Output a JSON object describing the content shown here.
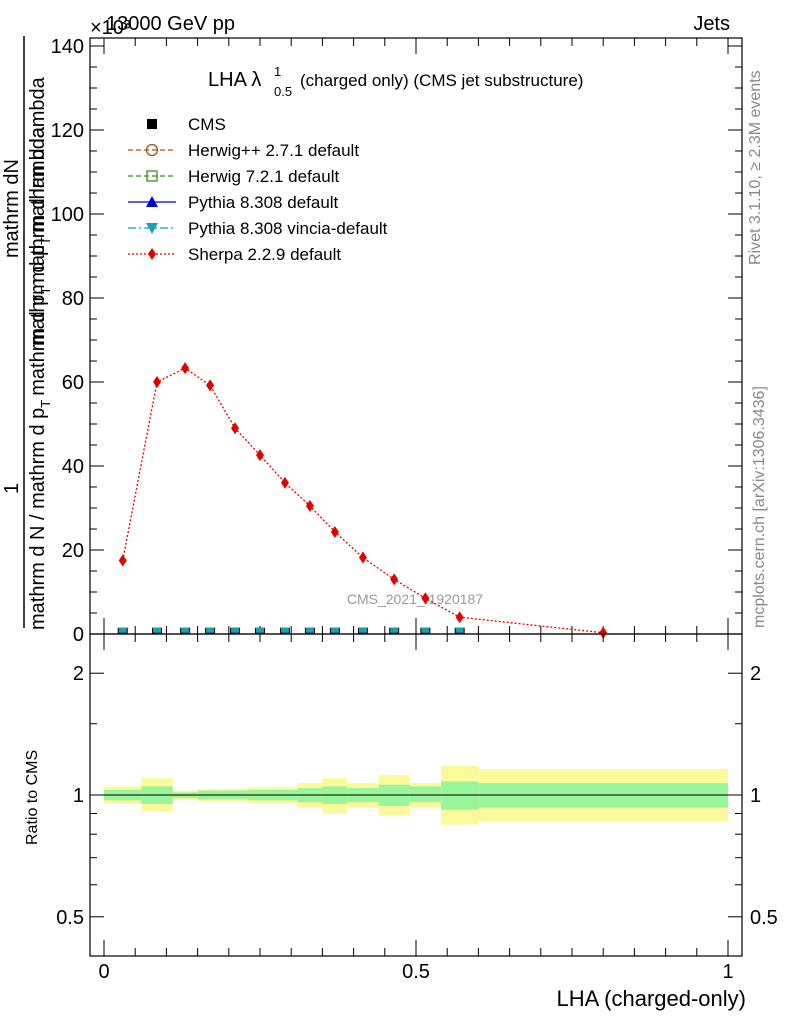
{
  "header": {
    "left": "13000 GeV pp",
    "right": "Jets",
    "exponent": "×10³"
  },
  "side_labels": {
    "rivet": "Rivet 3.1.10, ≥ 2.3M events",
    "mcplots": "mcplots.cern.ch [arXiv:1306.3436]"
  },
  "watermark": "CMS_2021_I1920187",
  "chart_data": [
    {
      "type": "line",
      "title": "LHA λ",
      "title_sup": "1",
      "title_sub": "0.5",
      "title_suffix": "(charged only) (CMS jet substructure)",
      "ylabel_top": "mathrm dN",
      "ylabel_mid": "mathrm d p",
      "ylabel_sub": "T",
      "ylabel_end": "mathrm d lambda",
      "ylabel_one": "1",
      "ylabel_den_a": "mathrm d N / mathrm d p",
      "ylabel_den_sub": "T",
      "ylabel_den_b": "mathrm d p",
      "ylabel_den_sub2": "T",
      "ylabel_den_c": "mathrm d lambda",
      "xlim": [
        0,
        1
      ],
      "ylim": [
        0,
        140
      ],
      "y_ticks": [
        "0",
        "20",
        "40",
        "60",
        "80",
        "100",
        "120",
        "140"
      ],
      "legend": [
        {
          "name": "CMS",
          "color": "#000000",
          "marker": "square-filled",
          "dash": "none"
        },
        {
          "name": "Herwig++ 2.7.1 default",
          "color": "#a0521a",
          "marker": "circle-open",
          "dash": "dashed"
        },
        {
          "name": "Herwig 7.2.1 default",
          "color": "#3c8c1e",
          "marker": "square-open",
          "dash": "dashed"
        },
        {
          "name": "Pythia 8.308 default",
          "color": "#0000cc",
          "marker": "triangle-up",
          "dash": "solid"
        },
        {
          "name": "Pythia 8.308 vincia-default",
          "color": "#1aa0b4",
          "marker": "triangle-down",
          "dash": "dashdot"
        },
        {
          "name": "Sherpa 2.2.9 default",
          "color": "#e00000",
          "marker": "diamond",
          "dash": "dotted"
        }
      ],
      "cms_x": [
        0.03,
        0.085,
        0.13,
        0.17,
        0.21,
        0.25,
        0.29,
        0.33,
        0.37,
        0.415,
        0.465,
        0.515,
        0.57
      ],
      "cms_y": [
        0.3,
        0.3,
        0.3,
        0.3,
        0.3,
        0.3,
        0.3,
        0.3,
        0.3,
        0.3,
        0.3,
        0.3,
        0.3
      ],
      "sherpa_x": [
        0.03,
        0.085,
        0.13,
        0.17,
        0.21,
        0.25,
        0.29,
        0.33,
        0.37,
        0.415,
        0.465,
        0.515,
        0.57,
        0.8
      ],
      "sherpa_y": [
        17.5,
        60,
        63.3,
        59.2,
        49,
        42.6,
        36,
        30.5,
        24.3,
        18.2,
        13,
        8.5,
        4,
        0.3
      ]
    },
    {
      "type": "area",
      "ylabel": "Ratio to CMS",
      "xlabel": "LHA (charged-only)",
      "xlim": [
        0,
        1
      ],
      "ylim": [
        0.4,
        2.5
      ],
      "scale": "log",
      "x_ticks": [
        "0",
        "0.5",
        "1"
      ],
      "y_ticks": [
        "0.5",
        "1",
        "2"
      ],
      "band_edges": [
        0,
        0.06,
        0.11,
        0.15,
        0.19,
        0.23,
        0.27,
        0.31,
        0.35,
        0.39,
        0.44,
        0.49,
        0.54,
        0.6,
        1.0
      ],
      "band_inner_lo": [
        0.97,
        0.95,
        0.985,
        0.975,
        0.975,
        0.97,
        0.97,
        0.96,
        0.95,
        0.96,
        0.94,
        0.96,
        0.92,
        0.93
      ],
      "band_inner_hi": [
        1.03,
        1.05,
        1.015,
        1.025,
        1.025,
        1.03,
        1.03,
        1.04,
        1.05,
        1.04,
        1.06,
        1.05,
        1.08,
        1.07
      ],
      "band_outer_lo": [
        0.95,
        0.91,
        0.975,
        0.965,
        0.965,
        0.955,
        0.955,
        0.93,
        0.9,
        0.93,
        0.89,
        0.93,
        0.845,
        0.86
      ],
      "band_outer_hi": [
        1.05,
        1.1,
        1.025,
        1.035,
        1.035,
        1.045,
        1.045,
        1.07,
        1.1,
        1.07,
        1.12,
        1.07,
        1.18,
        1.16
      ],
      "inner_color": "#99f599",
      "outer_color": "#fafa9a"
    }
  ]
}
